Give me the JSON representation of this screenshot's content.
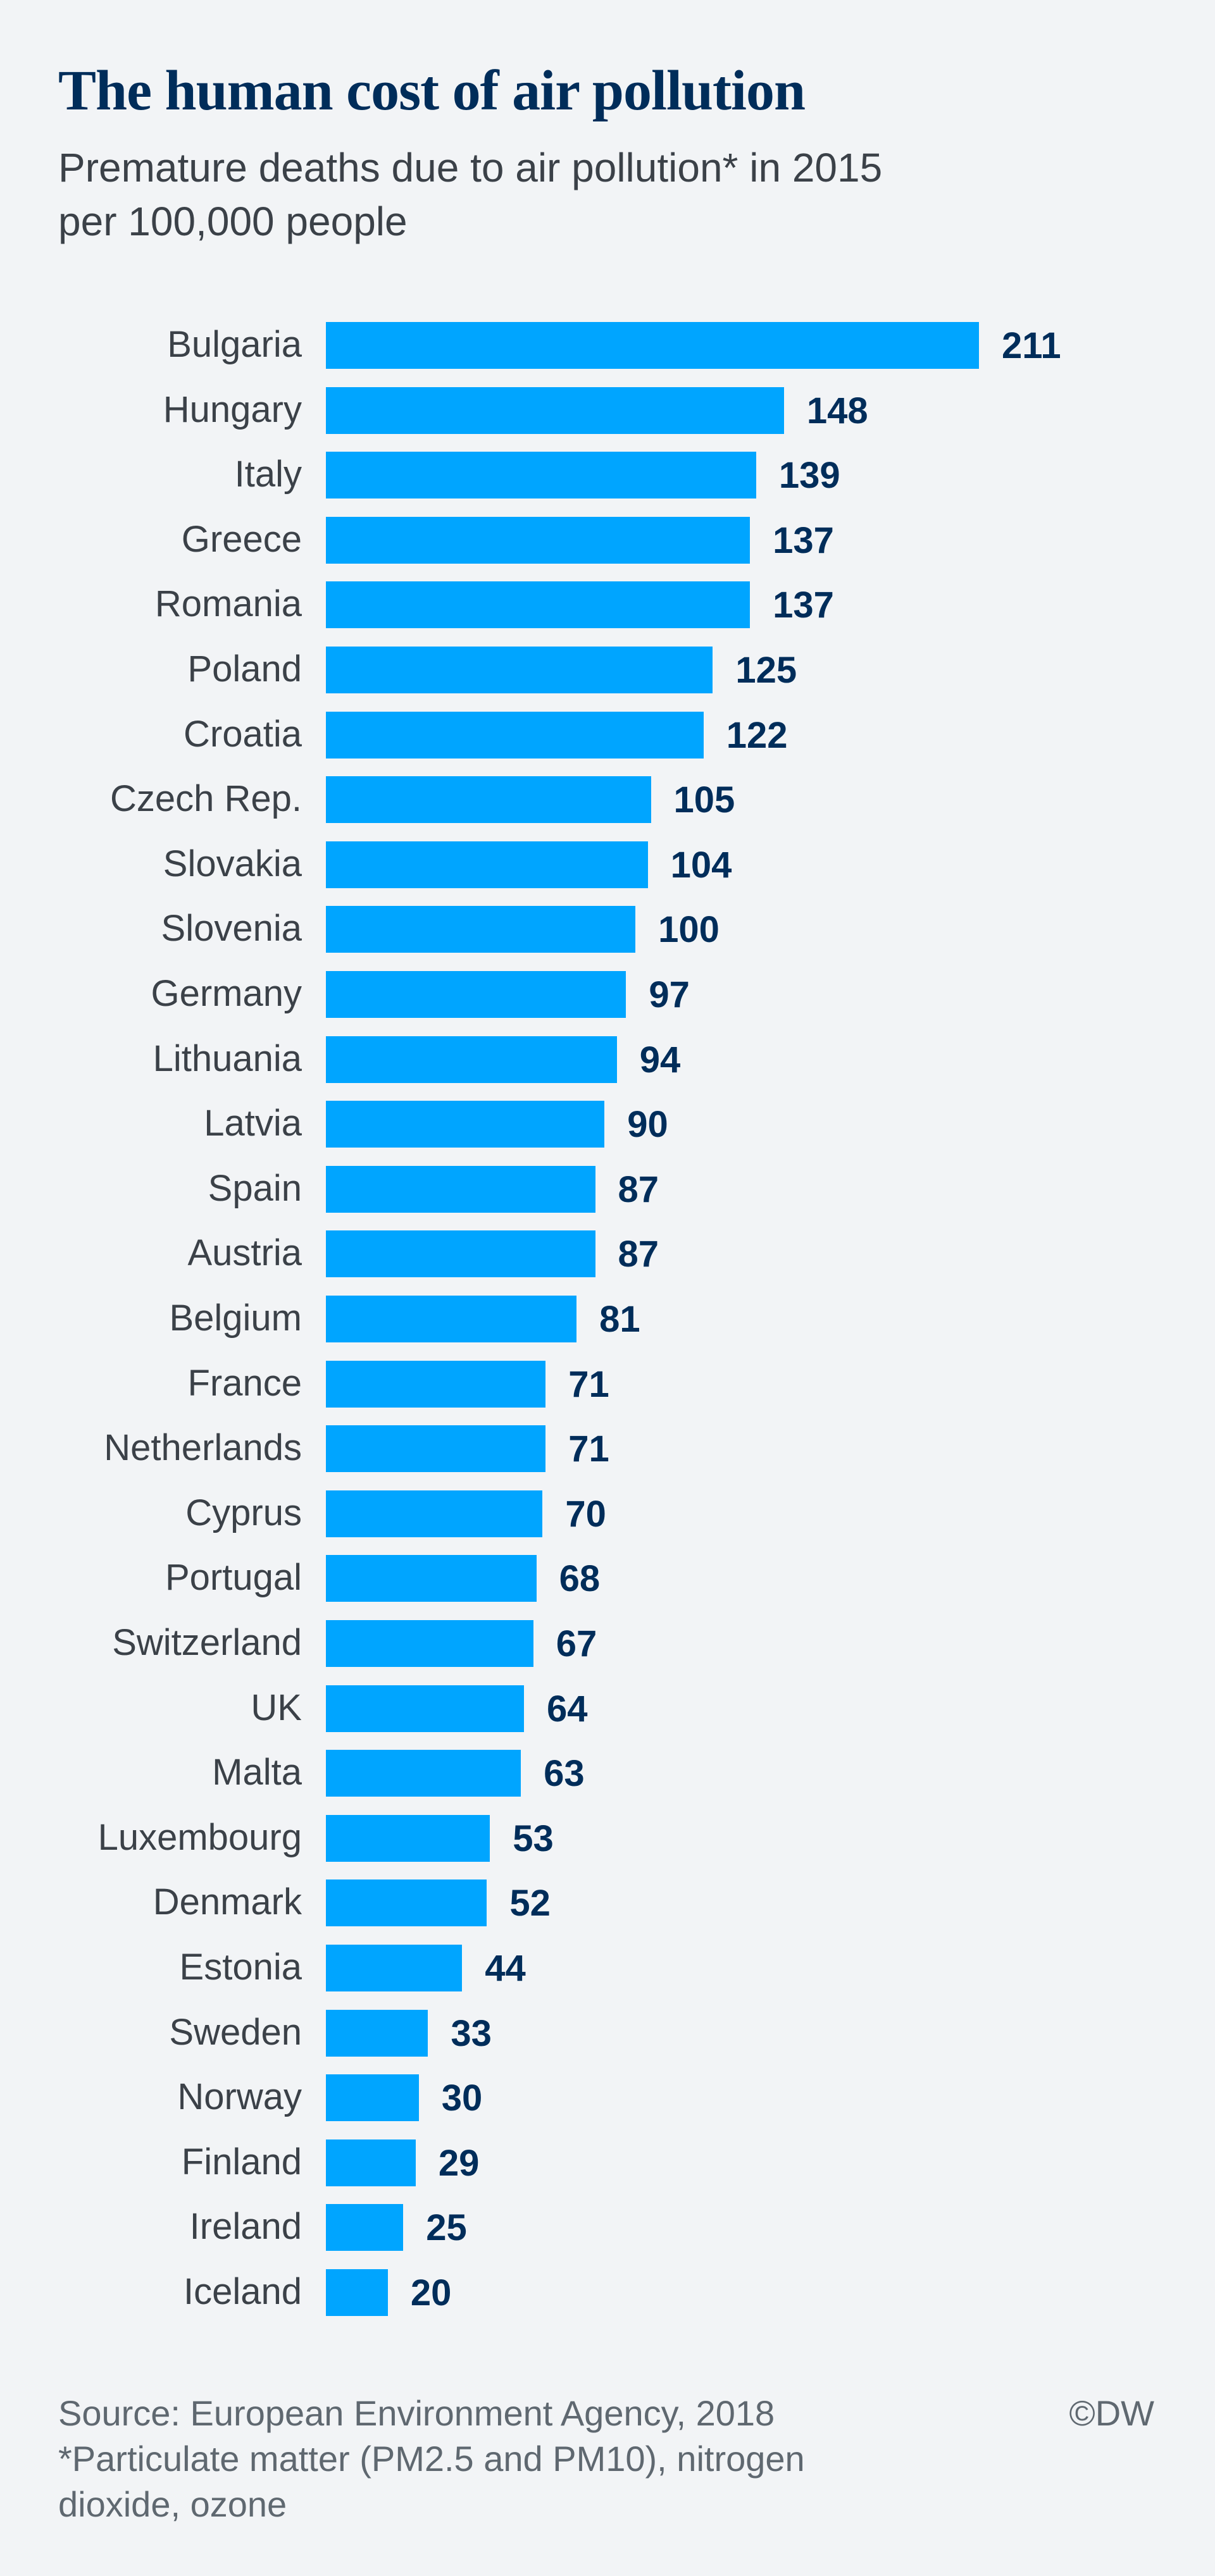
{
  "chart_data": {
    "type": "bar",
    "orientation": "horizontal",
    "title": "The human cost of air pollution",
    "subtitle_lines": [
      "Premature deaths due to air pollution* in 2015",
      "per 100,000 people"
    ],
    "categories": [
      "Bulgaria",
      "Hungary",
      "Italy",
      "Greece",
      "Romania",
      "Poland",
      "Croatia",
      "Czech Rep.",
      "Slovakia",
      "Slovenia",
      "Germany",
      "Lithuania",
      "Latvia",
      "Spain",
      "Austria",
      "Belgium",
      "France",
      "Netherlands",
      "Cyprus",
      "Portugal",
      "Switzerland",
      "UK",
      "Malta",
      "Luxembourg",
      "Denmark",
      "Estonia",
      "Sweden",
      "Norway",
      "Finland",
      "Ireland",
      "Iceland"
    ],
    "values": [
      211,
      148,
      139,
      137,
      137,
      125,
      122,
      105,
      104,
      100,
      97,
      94,
      90,
      87,
      87,
      81,
      71,
      71,
      70,
      68,
      67,
      64,
      63,
      53,
      52,
      44,
      33,
      30,
      29,
      25,
      20
    ],
    "xlim": [
      0,
      211
    ],
    "grid": false,
    "data_labels": true,
    "bar_color": "#00a5ff",
    "value_label_color": "#002d5a"
  },
  "footer": {
    "source": "Source: European Environment Agency, 2018",
    "note_lines": [
      "*Particulate matter (PM2.5 and PM10), nitrogen",
      "dioxide, ozone"
    ],
    "credit": "©DW"
  }
}
